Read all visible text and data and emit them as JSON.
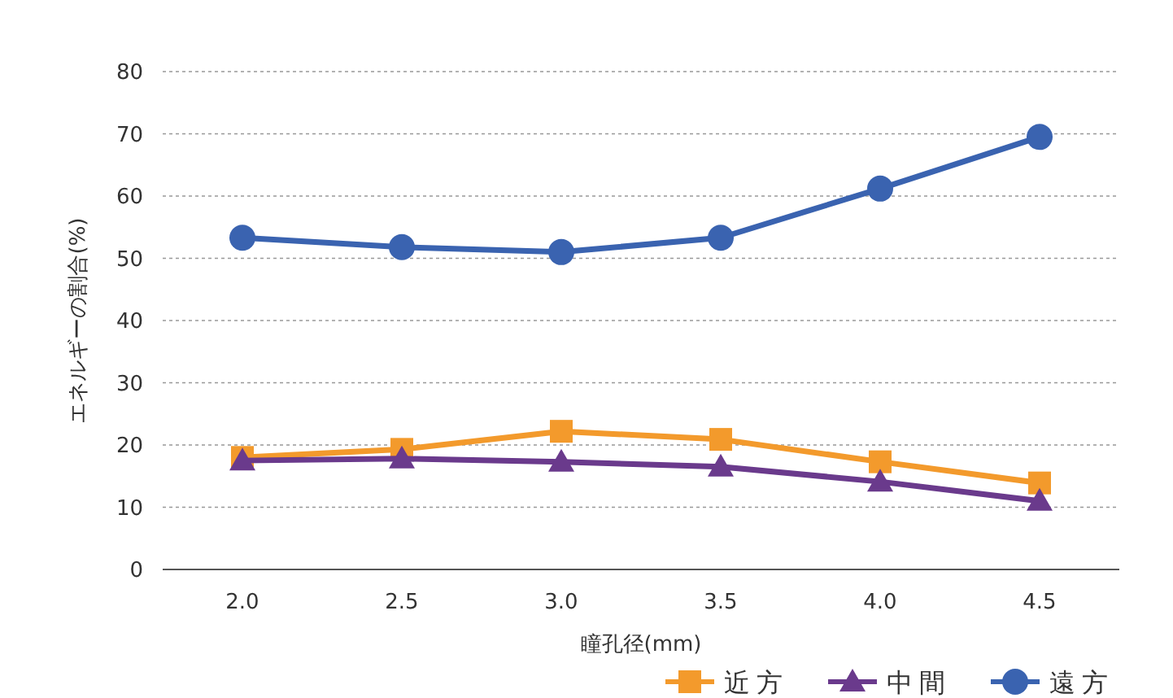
{
  "chart_data": {
    "type": "line",
    "xlabel": "瞳孔径(mm)",
    "ylabel": "エネルギーの割合(%)",
    "categories": [
      "2.0",
      "2.5",
      "3.0",
      "3.5",
      "4.0",
      "4.5"
    ],
    "ylim": [
      0,
      80
    ],
    "yticks": [
      0,
      10,
      20,
      30,
      40,
      50,
      60,
      70,
      80
    ],
    "grid": "y",
    "legend": "bottom right",
    "line_style": "solid",
    "series": [
      {
        "name": "近方",
        "color": "#f39a2c",
        "marker": "square",
        "values": [
          18.0,
          19.3,
          22.2,
          20.9,
          17.3,
          13.9
        ]
      },
      {
        "name": "中間",
        "color": "#6a3a8c",
        "marker": "triangle",
        "values": [
          17.5,
          17.8,
          17.3,
          16.5,
          14.1,
          11.0
        ]
      },
      {
        "name": "遠方",
        "color": "#3a63b0",
        "marker": "circle",
        "values": [
          53.3,
          51.8,
          51.0,
          53.3,
          61.2,
          69.5
        ]
      }
    ]
  }
}
